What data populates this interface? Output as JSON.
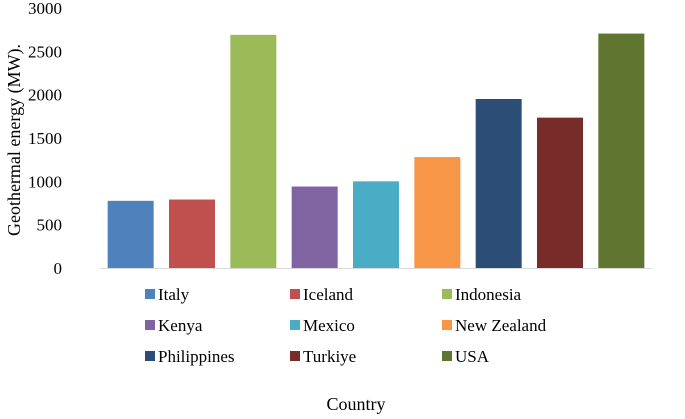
{
  "chart_data": {
    "type": "bar",
    "categories": [
      "Italy",
      "Iceland",
      "Indonesia",
      "Kenya",
      "Mexico",
      "New Zealand",
      "Philippines",
      "Turkiye",
      "USA"
    ],
    "values": [
      775,
      790,
      2690,
      940,
      1000,
      1280,
      1950,
      1735,
      2705
    ],
    "colors": [
      "#4F81BD",
      "#C0504D",
      "#9BBB59",
      "#8064A2",
      "#4BACC6",
      "#F79646",
      "#2C4D75",
      "#772C2A",
      "#5F7530"
    ],
    "title": "",
    "xlabel": "Country",
    "ylabel": "Geothermal energy (MW).",
    "ylim": [
      0,
      3000
    ],
    "yticks": [
      0,
      500,
      1000,
      1500,
      2000,
      2500,
      3000
    ],
    "ytick_labels": [
      "0",
      "500",
      "1000",
      "1500",
      "2000",
      "2500",
      "3000"
    ],
    "grid": false,
    "legend": {
      "placement": "bottom",
      "entries": [
        "Italy",
        "Iceland",
        "Indonesia",
        "Kenya",
        "Mexico",
        "New Zealand",
        "Philippines",
        "Turkiye",
        "USA"
      ]
    }
  }
}
